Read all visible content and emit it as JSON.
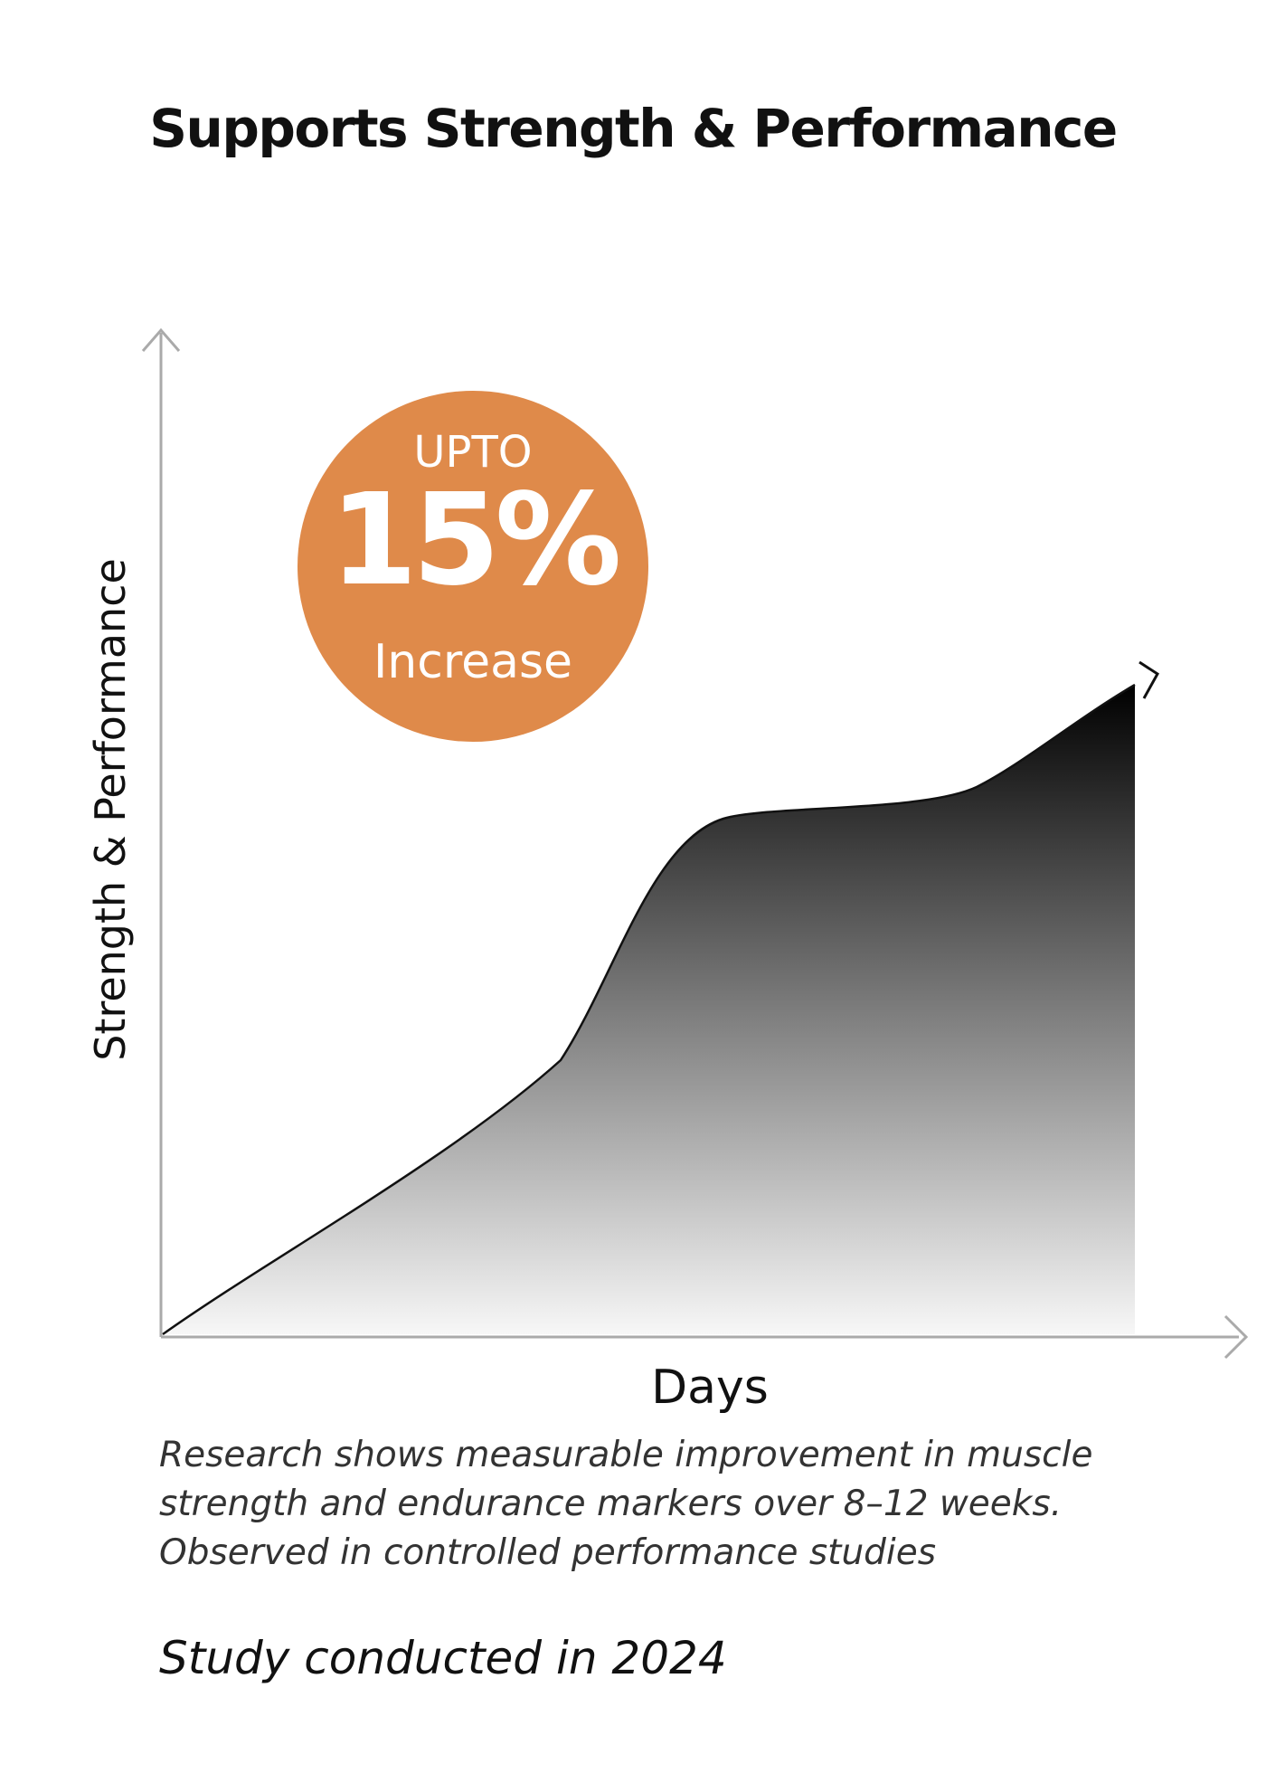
{
  "title": "Supports Strength & Performance",
  "badge": {
    "line1": "UPTO",
    "line2": "15%",
    "line3": "Increase",
    "color": "#df8a4a"
  },
  "description": "Research shows measurable improvement in muscle strength and endurance markers over 8–12 weeks. Observed in controlled performance studies",
  "study_note": "Study conducted in 2024",
  "chart_data": {
    "type": "area",
    "title": "Supports Strength & Performance",
    "xlabel": "Days",
    "ylabel": "Strength & Performance",
    "grid": false,
    "fill": "vertical gradient, light gray at bottom to black at top",
    "curve_color": "#111111",
    "axis_color": "#aaaaaa"
  }
}
